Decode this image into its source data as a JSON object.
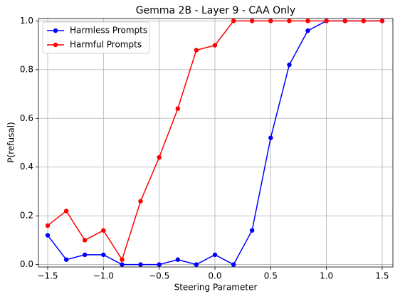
{
  "chart_data": {
    "type": "line",
    "title": "Gemma 2B - Layer 9 - CAA Only",
    "xlabel": "Steering Parameter",
    "ylabel": "P(refusal)",
    "x": [
      -1.5,
      -1.333,
      -1.167,
      -1.0,
      -0.833,
      -0.667,
      -0.5,
      -0.333,
      -0.167,
      0.0,
      0.167,
      0.333,
      0.5,
      0.667,
      0.833,
      1.0,
      1.167,
      1.333,
      1.5
    ],
    "series": [
      {
        "name": "Harmless Prompts",
        "color": "#0000ff",
        "values": [
          0.12,
          0.02,
          0.04,
          0.04,
          0,
          0,
          0,
          0.02,
          0,
          0.04,
          0,
          0.14,
          0.52,
          0.82,
          0.96,
          1,
          1,
          1,
          1
        ]
      },
      {
        "name": "Harmful Prompts",
        "color": "#ff0000",
        "values": [
          0.16,
          0.22,
          0.1,
          0.14,
          0.02,
          0.26,
          0.44,
          0.64,
          0.88,
          0.9,
          1,
          1,
          1,
          1,
          1,
          1,
          1,
          1,
          1
        ]
      }
    ],
    "xlim": [
      -1.583,
      1.596
    ],
    "ylim": [
      -0.01,
      1.01
    ],
    "xticks": [
      {
        "value": -1.5,
        "label": "−1.5"
      },
      {
        "value": -1.0,
        "label": "−1.0"
      },
      {
        "value": -0.5,
        "label": "−0.5"
      },
      {
        "value": 0,
        "label": "0.0"
      },
      {
        "value": 0.5,
        "label": "0.5"
      },
      {
        "value": 1.0,
        "label": "1.0"
      },
      {
        "value": 1.5,
        "label": "1.5"
      }
    ],
    "yticks": [
      {
        "value": 0,
        "label": "0.0"
      },
      {
        "value": 0.2,
        "label": "0.2"
      },
      {
        "value": 0.4,
        "label": "0.4"
      },
      {
        "value": 0.6,
        "label": "0.6"
      },
      {
        "value": 0.8,
        "label": "0.8"
      },
      {
        "value": 1.0,
        "label": "1.0"
      }
    ],
    "grid": true,
    "legend": "upper-left"
  }
}
